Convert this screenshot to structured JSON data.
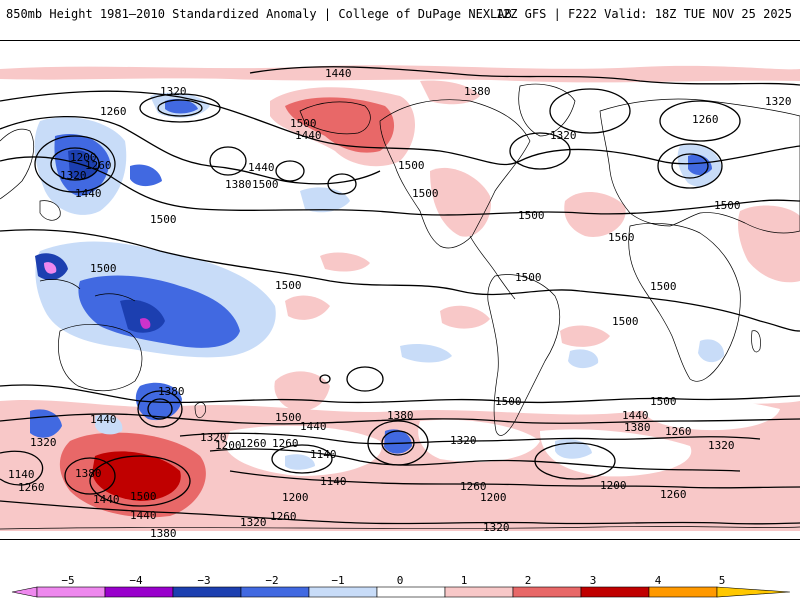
{
  "header": {
    "title": "850mb Height 1981–2010 Standardized Anomaly | College of DuPage NEXLAB",
    "valid": "12Z GFS | F222 Valid: 18Z TUE NOV 25 2025"
  },
  "colors": {
    "ocean": "#ffffff",
    "coast": "#000000",
    "contour": "#000000"
  },
  "contour_labels": [
    "1320",
    "1440",
    "1380",
    "1320",
    "1260",
    "1500",
    "1440",
    "1320",
    "1200",
    "1260",
    "1320",
    "1440",
    "1380",
    "1500",
    "1440",
    "1500",
    "1500",
    "1500",
    "1500",
    "1560",
    "1500",
    "1500",
    "1500",
    "1500",
    "1500",
    "1500",
    "1500",
    "1380",
    "1440",
    "1500",
    "1380",
    "1440",
    "1320",
    "1260",
    "1140",
    "1320",
    "1200",
    "1260",
    "1380",
    "1320",
    "1140",
    "1440",
    "1200",
    "1260",
    "1260",
    "1440",
    "1500",
    "1200",
    "1260",
    "1320",
    "1380",
    "1140",
    "1260",
    "1380",
    "1320",
    "1260",
    "1440",
    "1320",
    "1500",
    "1200",
    "1260"
  ],
  "legend": {
    "ticks": [
      "−5",
      "−4",
      "−3",
      "−2",
      "−1",
      "0",
      "1",
      "2",
      "3",
      "4",
      "5"
    ],
    "colors": [
      "#ee88ee",
      "#9900cc",
      "#1c3fb0",
      "#4169e1",
      "#c8dcf8",
      "#ffffff",
      "#ffffff",
      "#f8c8c8",
      "#e86868",
      "#c00000",
      "#ff9900",
      "#ffc800"
    ]
  }
}
